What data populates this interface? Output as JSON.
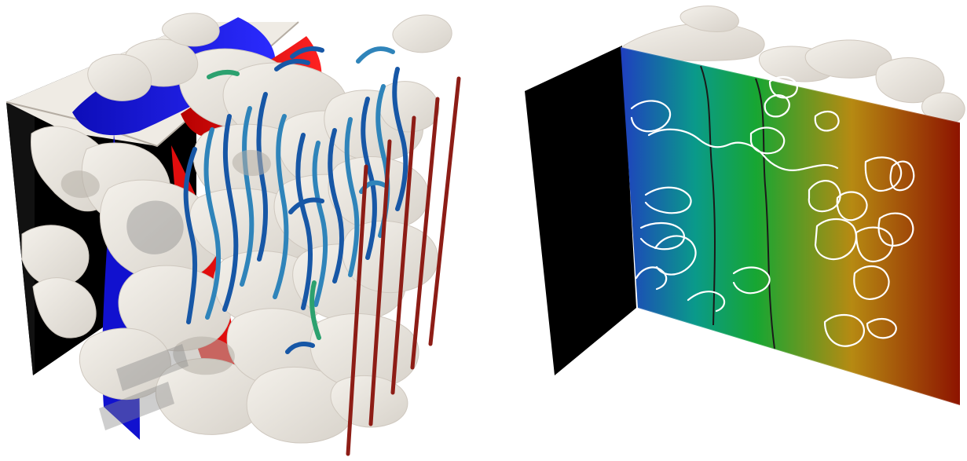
{
  "figure": {
    "left_panel": {
      "type": "3d-porous-medium-flow-render",
      "colors": {
        "background_wall": "#000000",
        "solid_grains": "#ece9e2",
        "inlet_boundary": "#1616d8",
        "outlet_boundary": "#e10d0d",
        "streamlines_dark": "#1757a6",
        "streamlines_light": "#2f84ba",
        "streamlines_green": "#2ca16f",
        "probe_lines": "#8d1d16"
      }
    },
    "right_panel": {
      "type": "3d-scalar-field-slice-render",
      "colors": {
        "background_wall": "#000000",
        "solid_grains": "#ece9e2",
        "field_gradient": [
          "#1f3fbf",
          "#0a9a8a",
          "#17a632",
          "#b68a12",
          "#8d1300"
        ],
        "contour_lines": "#1a1a1a",
        "pore_outlines": "#ffffff"
      }
    }
  }
}
